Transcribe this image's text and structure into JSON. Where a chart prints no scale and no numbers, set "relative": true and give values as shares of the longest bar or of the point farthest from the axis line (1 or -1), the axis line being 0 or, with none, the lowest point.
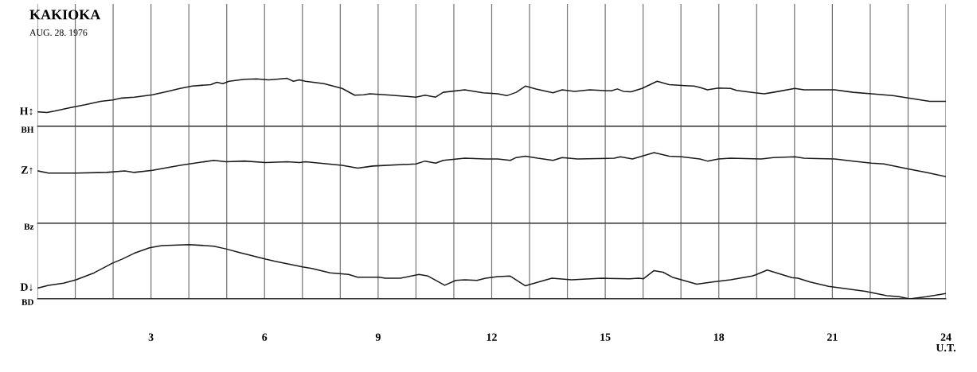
{
  "chart_data": [
    {
      "type": "line",
      "title": "KAKIOKA",
      "subtitle": "AUG. 28. 1976",
      "relative": true,
      "grid": "x",
      "tick_labels": false,
      "line_style": "solid",
      "xlim": [
        0,
        24
      ],
      "xticks": [
        {
          "value": 0,
          "label": null
        },
        {
          "value": 1,
          "label": null
        },
        {
          "value": 2,
          "label": null
        },
        {
          "value": 3,
          "label": null
        },
        {
          "value": 4,
          "label": null
        },
        {
          "value": 5,
          "label": null
        },
        {
          "value": 6,
          "label": null
        },
        {
          "value": 7,
          "label": null
        },
        {
          "value": 8,
          "label": null
        },
        {
          "value": 9,
          "label": null
        },
        {
          "value": 10,
          "label": null
        },
        {
          "value": 11,
          "label": null
        },
        {
          "value": 12,
          "label": null
        },
        {
          "value": 13,
          "label": null
        },
        {
          "value": 14,
          "label": null
        },
        {
          "value": 15,
          "label": null
        },
        {
          "value": 16,
          "label": null
        },
        {
          "value": 17,
          "label": null
        },
        {
          "value": 18,
          "label": null
        },
        {
          "value": 19,
          "label": null
        },
        {
          "value": 20,
          "label": null
        },
        {
          "value": 21,
          "label": null
        },
        {
          "value": 22,
          "label": null
        },
        {
          "value": 23,
          "label": null
        },
        {
          "value": 24,
          "label": null
        }
      ],
      "ref_lines": [
        {
          "axis": "y",
          "value": 0,
          "label": "BH",
          "color": "#1a1a1a"
        }
      ],
      "series": [
        {
          "name": "H↕",
          "color": "#1a1a1a",
          "x": [
            0.02,
            0.25,
            0.45,
            0.86,
            1.26,
            1.67,
            1.99,
            2.23,
            2.56,
            3.04,
            3.44,
            3.77,
            4.09,
            4.58,
            4.74,
            4.9,
            5.06,
            5.47,
            5.79,
            6.11,
            6.6,
            6.76,
            6.92,
            7.08,
            7.57,
            8.05,
            8.38,
            8.62,
            8.78,
            9.35,
            10.0,
            10.24,
            10.52,
            10.72,
            11.29,
            11.77,
            12.16,
            12.4,
            12.65,
            12.89,
            13.17,
            13.62,
            13.86,
            14.19,
            14.59,
            15.16,
            15.32,
            15.48,
            15.68,
            15.97,
            16.37,
            16.69,
            17.1,
            17.34,
            17.5,
            17.7,
            17.99,
            18.31,
            18.47,
            18.96,
            19.2,
            19.44,
            20.01,
            20.25,
            21.06,
            21.55,
            22.03,
            22.6,
            23.0,
            23.57,
            24
          ],
          "values": [
            0.3,
            0.29,
            0.32,
            0.39,
            0.45,
            0.52,
            0.55,
            0.59,
            0.61,
            0.66,
            0.73,
            0.79,
            0.84,
            0.87,
            0.92,
            0.89,
            0.94,
            0.98,
            0.99,
            0.97,
            1.0,
            0.94,
            0.97,
            0.94,
            0.89,
            0.79,
            0.65,
            0.66,
            0.68,
            0.65,
            0.61,
            0.65,
            0.61,
            0.71,
            0.76,
            0.7,
            0.68,
            0.64,
            0.71,
            0.84,
            0.78,
            0.7,
            0.76,
            0.73,
            0.76,
            0.74,
            0.78,
            0.73,
            0.72,
            0.79,
            0.94,
            0.87,
            0.85,
            0.84,
            0.81,
            0.76,
            0.8,
            0.79,
            0.75,
            0.7,
            0.68,
            0.71,
            0.79,
            0.76,
            0.76,
            0.71,
            0.68,
            0.64,
            0.59,
            0.52,
            0.52
          ]
        }
      ]
    },
    {
      "type": "line",
      "relative": true,
      "grid": "x",
      "tick_labels": false,
      "line_style": "solid",
      "xlim": [
        0,
        24
      ],
      "xticks": [
        {
          "value": 0,
          "label": null
        },
        {
          "value": 1,
          "label": null
        },
        {
          "value": 2,
          "label": null
        },
        {
          "value": 3,
          "label": null
        },
        {
          "value": 4,
          "label": null
        },
        {
          "value": 5,
          "label": null
        },
        {
          "value": 6,
          "label": null
        },
        {
          "value": 7,
          "label": null
        },
        {
          "value": 8,
          "label": null
        },
        {
          "value": 9,
          "label": null
        },
        {
          "value": 10,
          "label": null
        },
        {
          "value": 11,
          "label": null
        },
        {
          "value": 12,
          "label": null
        },
        {
          "value": 13,
          "label": null
        },
        {
          "value": 14,
          "label": null
        },
        {
          "value": 15,
          "label": null
        },
        {
          "value": 16,
          "label": null
        },
        {
          "value": 17,
          "label": null
        },
        {
          "value": 18,
          "label": null
        },
        {
          "value": 19,
          "label": null
        },
        {
          "value": 20,
          "label": null
        },
        {
          "value": 21,
          "label": null
        },
        {
          "value": 22,
          "label": null
        },
        {
          "value": 23,
          "label": null
        },
        {
          "value": 24,
          "label": null
        }
      ],
      "ref_lines": [
        {
          "axis": "y",
          "value": 0,
          "label": "Bz",
          "color": "#1a1a1a"
        }
      ],
      "series": [
        {
          "name": "Z↑",
          "color": "#1a1a1a",
          "x": [
            0.02,
            0.29,
            1.02,
            1.83,
            2.31,
            2.56,
            3.04,
            3.77,
            4.66,
            4.98,
            5.47,
            6.03,
            6.6,
            6.92,
            7.08,
            8.05,
            8.46,
            8.86,
            10.0,
            10.24,
            10.52,
            10.72,
            11.29,
            11.84,
            12.16,
            12.49,
            12.65,
            12.89,
            13.22,
            13.62,
            13.86,
            14.27,
            15.24,
            15.4,
            15.72,
            16.29,
            16.69,
            17.02,
            17.5,
            17.7,
            17.99,
            18.31,
            19.12,
            19.44,
            20.01,
            20.25,
            21.06,
            21.55,
            22.03,
            22.36,
            23.0,
            23.49,
            24
          ],
          "values": [
            0.74,
            0.71,
            0.71,
            0.72,
            0.74,
            0.72,
            0.75,
            0.82,
            0.89,
            0.87,
            0.88,
            0.86,
            0.87,
            0.86,
            0.87,
            0.82,
            0.78,
            0.81,
            0.84,
            0.88,
            0.85,
            0.89,
            0.92,
            0.91,
            0.91,
            0.89,
            0.93,
            0.95,
            0.92,
            0.89,
            0.93,
            0.91,
            0.92,
            0.94,
            0.91,
            1.0,
            0.95,
            0.94,
            0.91,
            0.88,
            0.91,
            0.92,
            0.91,
            0.93,
            0.94,
            0.92,
            0.91,
            0.88,
            0.85,
            0.84,
            0.77,
            0.72,
            0.66
          ]
        }
      ]
    },
    {
      "type": "line",
      "relative": true,
      "grid": "x",
      "tick_labels": "x",
      "line_style": "solid",
      "xlabel": "U.T.",
      "xlim": [
        0,
        24
      ],
      "xticks": [
        {
          "value": 0,
          "label": null
        },
        {
          "value": 1,
          "label": null
        },
        {
          "value": 2,
          "label": null
        },
        3,
        {
          "value": 4,
          "label": null
        },
        {
          "value": 5,
          "label": null
        },
        6,
        {
          "value": 7,
          "label": null
        },
        {
          "value": 8,
          "label": null
        },
        9,
        {
          "value": 10,
          "label": null
        },
        {
          "value": 11,
          "label": null
        },
        12,
        {
          "value": 13,
          "label": null
        },
        {
          "value": 14,
          "label": null
        },
        15,
        {
          "value": 16,
          "label": null
        },
        {
          "value": 17,
          "label": null
        },
        18,
        {
          "value": 19,
          "label": null
        },
        {
          "value": 20,
          "label": null
        },
        21,
        {
          "value": 22,
          "label": null
        },
        {
          "value": 23,
          "label": null
        },
        24
      ],
      "ref_lines": [
        {
          "axis": "y",
          "value": 0,
          "label": "BD",
          "color": "#1a1a1a"
        }
      ],
      "series": [
        {
          "name": "D↓",
          "color": "#1a1a1a",
          "x": [
            0.02,
            0.29,
            0.69,
            1.02,
            1.5,
            1.99,
            2.23,
            2.56,
            2.96,
            3.28,
            4.01,
            4.66,
            4.98,
            5.3,
            6.03,
            6.28,
            7.0,
            7.25,
            7.73,
            8.22,
            8.46,
            9.03,
            9.19,
            9.59,
            10.08,
            10.32,
            10.76,
            11.05,
            11.29,
            11.61,
            11.84,
            12.16,
            12.49,
            12.89,
            13.59,
            14.11,
            14.91,
            15.64,
            15.88,
            16.01,
            16.29,
            16.53,
            16.77,
            17.42,
            17.83,
            18.31,
            18.88,
            18.96,
            19.28,
            19.93,
            20.09,
            20.41,
            20.9,
            21.87,
            22.44,
            22.76,
            23.04,
            23.49,
            24
          ],
          "values": [
            0.2,
            0.25,
            0.29,
            0.35,
            0.48,
            0.66,
            0.73,
            0.84,
            0.94,
            0.98,
            1.0,
            0.97,
            0.92,
            0.86,
            0.73,
            0.69,
            0.59,
            0.56,
            0.48,
            0.45,
            0.4,
            0.4,
            0.38,
            0.38,
            0.45,
            0.42,
            0.25,
            0.34,
            0.35,
            0.34,
            0.38,
            0.41,
            0.42,
            0.24,
            0.38,
            0.35,
            0.38,
            0.37,
            0.38,
            0.37,
            0.52,
            0.49,
            0.4,
            0.27,
            0.31,
            0.35,
            0.42,
            0.44,
            0.53,
            0.39,
            0.38,
            0.31,
            0.23,
            0.14,
            0.06,
            0.04,
            0.0,
            0.04,
            0.1
          ]
        }
      ]
    }
  ]
}
